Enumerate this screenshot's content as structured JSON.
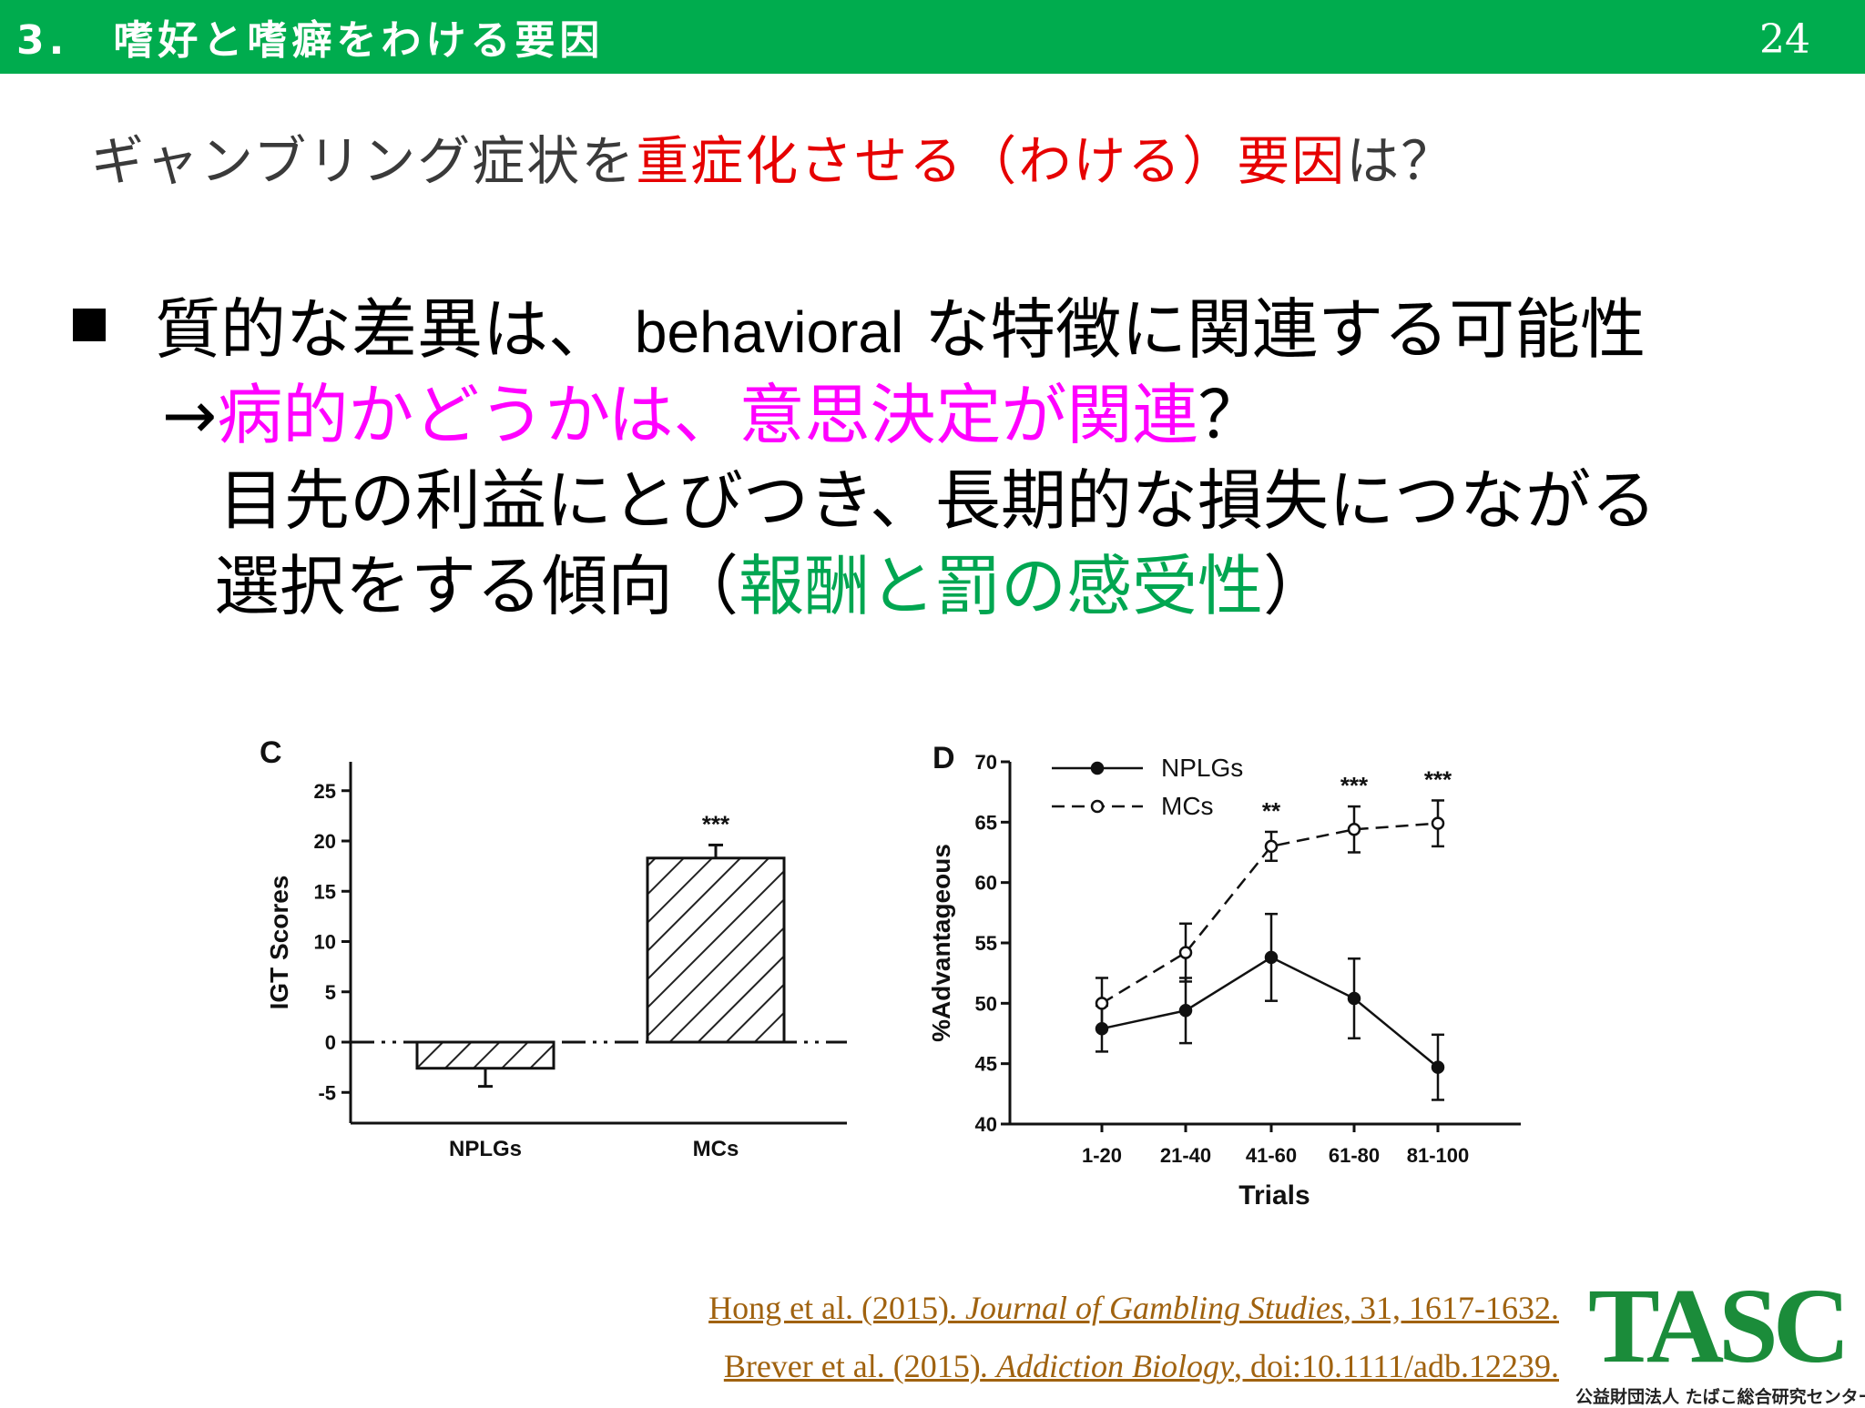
{
  "header": {
    "title": "3.　嗜好と嗜癖をわける要因",
    "page_number": "24",
    "bg_color": "#00ac4e"
  },
  "subtitle": {
    "part1": "ギャンブリング症状を",
    "part2_red": "重症化させる（わける）要因",
    "part3": "は？",
    "red_color": "#e60000"
  },
  "bullet": {
    "line1_a": "質的な差異は、",
    "line1_b": "behavioral",
    "line1_c": "な特徴に関連する可能性",
    "line2_arrow": "→",
    "line2_magenta": "病的かどうかは、意思決定が関連",
    "line2_end": "？",
    "line3": "目先の利益にとびつき、長期的な損失につながる",
    "line4_a": "選択をする傾向（",
    "line4_green": "報酬と罰の感受性",
    "line4_b": "）",
    "magenta_color": "#ff00ff",
    "green_color": "#00a651"
  },
  "chart_data": [
    {
      "type": "bar",
      "panel_label": "C",
      "title": "",
      "categories": [
        "NPLGs",
        "MCs"
      ],
      "values": [
        -2.6,
        18.3
      ],
      "errors": [
        1.8,
        1.3
      ],
      "significance": [
        "",
        "***"
      ],
      "xlabel": "",
      "ylabel": "IGT Scores",
      "ylim": [
        -8,
        27
      ],
      "yticks": [
        "25",
        "20",
        "15",
        "10",
        "5",
        "0",
        "-5"
      ],
      "bar_style": "diagonal-hatch",
      "grid": false
    },
    {
      "type": "line",
      "panel_label": "D",
      "title": "",
      "categories": [
        "1-20",
        "21-40",
        "41-60",
        "61-80",
        "81-100"
      ],
      "series": [
        {
          "name": "NPLGs",
          "values": [
            47.9,
            49.4,
            53.8,
            50.4,
            44.7
          ],
          "errors": [
            1.9,
            2.7,
            3.6,
            3.3,
            2.7
          ],
          "marker": "filled-circle",
          "line": "solid"
        },
        {
          "name": "MCs",
          "values": [
            50.0,
            54.2,
            63.0,
            64.4,
            64.9
          ],
          "errors": [
            2.1,
            2.4,
            1.2,
            1.9,
            1.9
          ],
          "marker": "open-circle",
          "line": "dashed"
        }
      ],
      "significance": [
        "",
        "",
        "**",
        "***",
        "***"
      ],
      "xlabel": "Trials",
      "ylabel": "%Advantageous",
      "ylim": [
        40,
        70
      ],
      "yticks": [
        "70",
        "65",
        "60",
        "55",
        "50",
        "45",
        "40"
      ],
      "legend_position": "top-left",
      "grid": false
    }
  ],
  "references": {
    "ref1_a": "Hong et al. (2015).",
    "ref1_journal": " Journal of Gambling Studies",
    "ref1_b": ", 31, 1617-1632.",
    "ref2_a": "Brever et al. (2015)",
    "ref2_journal": ". Addiction Biology",
    "ref2_b": ", doi:10.1111/adb.12239.",
    "color": "#a0620f"
  },
  "logo": {
    "text": "TASC",
    "subtext": "公益財団法人 たばこ総合研究センター",
    "color": "#1b8c3a"
  }
}
